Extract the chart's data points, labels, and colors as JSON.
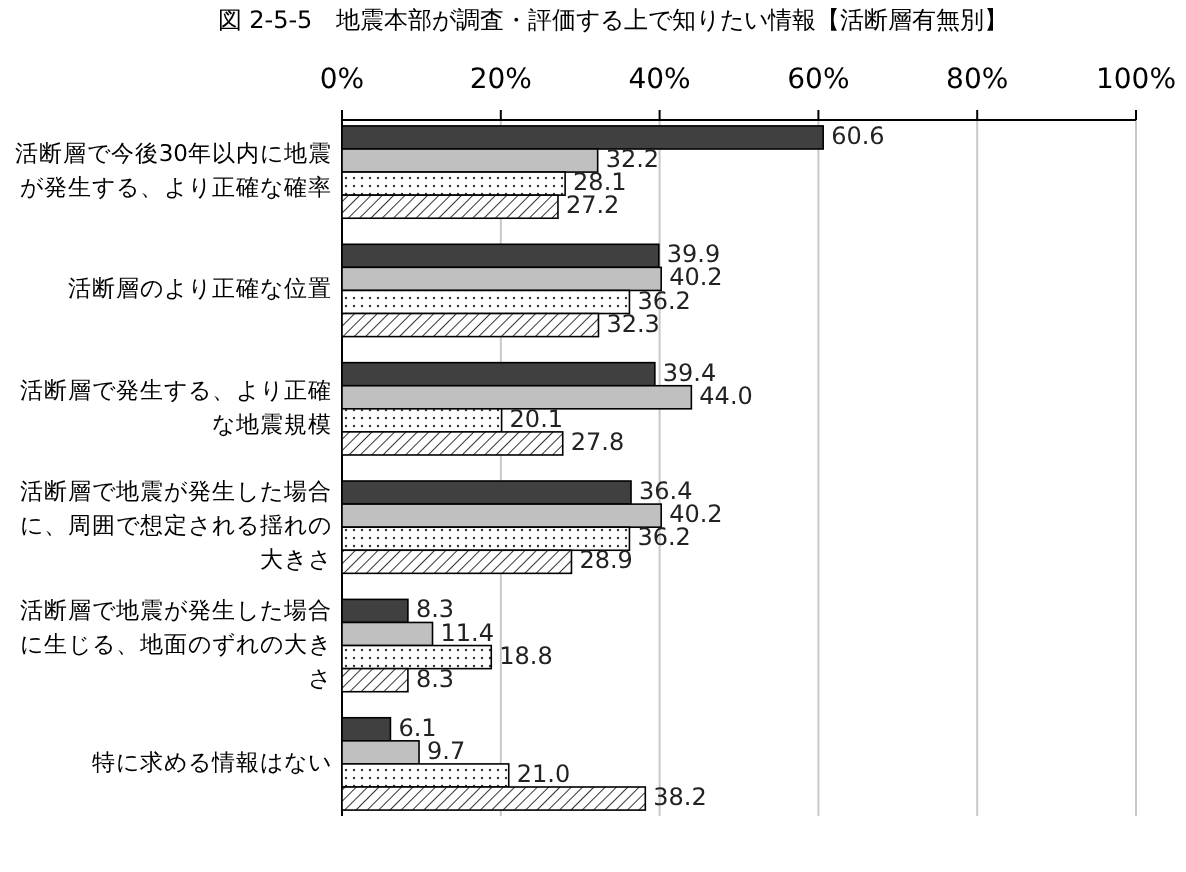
{
  "chart_data": {
    "type": "bar",
    "orientation": "horizontal",
    "title": "図 2-5-5　地震本部が調査・評価する上で知りたい情報【活断層有無別】",
    "categories": [
      "活断層で今後30年以内に地震が発生する、より正確な確率",
      "活断層のより正確な位置",
      "活断層で発生する、より正確な地震規模",
      "活断層で地震が発生した場合に、周囲で想定される揺れの大きさ",
      "活断層で地震が発生した場合に生じる、地面のずれの大きさ",
      "特に求める情報はない"
    ],
    "series": [
      {
        "color": "#404040",
        "values": [
          60.6,
          39.9,
          39.4,
          36.4,
          8.3,
          6.1
        ],
        "value_labels": [
          "60.6",
          "39.9",
          "39.4",
          "36.4",
          "8.3",
          "6.1"
        ]
      },
      {
        "color": "#c0c0c0",
        "values": [
          32.2,
          40.2,
          44.0,
          40.2,
          11.4,
          9.7
        ],
        "value_labels": [
          "32.2",
          "40.2",
          "44.0",
          "40.2",
          "11.4",
          "9.7"
        ]
      },
      {
        "color": "#ffffff",
        "values": [
          28.1,
          36.2,
          20.1,
          36.2,
          18.8,
          21.0
        ],
        "value_labels": [
          "28.1",
          "36.2",
          "20.1",
          "36.2",
          "18.8",
          "21.0"
        ]
      },
      {
        "color": "#ffffff",
        "values": [
          27.2,
          32.3,
          27.8,
          28.9,
          8.3,
          38.2
        ],
        "value_labels": [
          "27.2",
          "32.3",
          "27.8",
          "28.9",
          "8.3",
          "38.2"
        ]
      }
    ],
    "xlim": [
      0,
      100
    ],
    "xticks": [
      {
        "value": 0,
        "label": "0%"
      },
      {
        "value": 20,
        "label": "20%"
      },
      {
        "value": 40,
        "label": "40%"
      },
      {
        "value": 60,
        "label": "60%"
      },
      {
        "value": 80,
        "label": "80%"
      },
      {
        "value": 100,
        "label": "100%"
      }
    ],
    "grid": "x"
  }
}
